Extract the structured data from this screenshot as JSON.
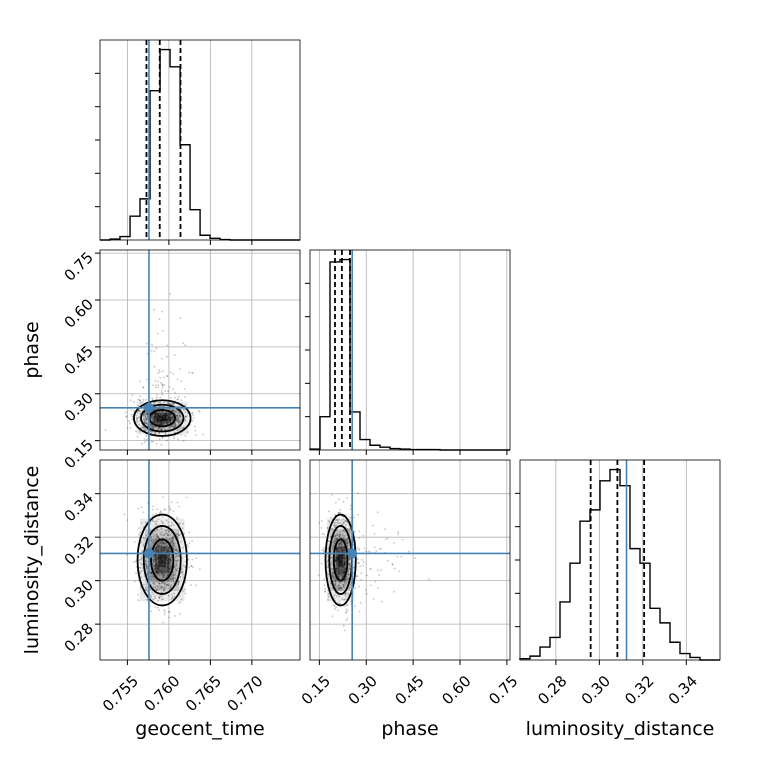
{
  "chart_data": {
    "type": "corner",
    "parameters": [
      "geocent_time",
      "phase",
      "luminosity_distance"
    ],
    "truth": {
      "geocent_time": 0.7576,
      "phase": 0.255,
      "luminosity_distance": 0.3125
    },
    "quantiles": {
      "geocent_time": [
        0.7573,
        0.7589,
        0.7614
      ],
      "phase": [
        0.2,
        0.222,
        0.248
      ],
      "luminosity_distance": [
        0.296,
        0.3083,
        0.3206
      ]
    },
    "ranges": {
      "geocent_time": [
        0.7517,
        0.7758
      ],
      "phase": [
        0.12,
        0.76
      ],
      "luminosity_distance": [
        0.2635,
        0.3555
      ]
    },
    "ticks": {
      "geocent_time": {
        "values": [
          0.755,
          0.76,
          0.765,
          0.77
        ],
        "labels": [
          "0.755",
          "0.760",
          "0.765",
          "0.770"
        ]
      },
      "phase": {
        "values": [
          0.15,
          0.3,
          0.45,
          0.6,
          0.75
        ],
        "labels": [
          "0.15",
          "0.30",
          "0.45",
          "0.60",
          "0.75"
        ]
      },
      "luminosity_distance": {
        "values": [
          0.28,
          0.3,
          0.32,
          0.34
        ],
        "labels": [
          "0.28",
          "0.30",
          "0.32",
          "0.34"
        ]
      }
    },
    "histograms": {
      "geocent_time": {
        "edges": [
          0.7517,
          0.75291,
          0.75411,
          0.75532,
          0.75652,
          0.75773,
          0.75894,
          0.76014,
          0.76135,
          0.76255,
          0.76376,
          0.76496,
          0.76617,
          0.76737,
          0.76858,
          0.76979,
          0.77099,
          0.7722,
          0.7734,
          0.77461,
          0.7758
        ],
        "counts": [
          0,
          2,
          8,
          55,
          95,
          345,
          440,
          400,
          220,
          70,
          11,
          4,
          1,
          0,
          0,
          0,
          0,
          0,
          0,
          0
        ]
      },
      "phase": {
        "edges": [
          0.12,
          0.152,
          0.184,
          0.216,
          0.248,
          0.28,
          0.312,
          0.344,
          0.376,
          0.408,
          0.44,
          0.472,
          0.504,
          0.536,
          0.568,
          0.6,
          0.632,
          0.664,
          0.696,
          0.728,
          0.76
        ],
        "counts": [
          2,
          70,
          395,
          400,
          80,
          22,
          10,
          6,
          3,
          2,
          1,
          1,
          1,
          0,
          0,
          0,
          0,
          0,
          0,
          0
        ]
      },
      "luminosity_distance": {
        "edges": [
          0.2635,
          0.2681,
          0.2727,
          0.2773,
          0.2819,
          0.2865,
          0.2911,
          0.2957,
          0.3003,
          0.3049,
          0.3095,
          0.3141,
          0.3187,
          0.3233,
          0.3279,
          0.3325,
          0.3371,
          0.3417,
          0.3463,
          0.3509,
          0.3555
        ],
        "counts": [
          4,
          12,
          40,
          70,
          180,
          300,
          430,
          465,
          555,
          590,
          540,
          345,
          300,
          160,
          115,
          55,
          20,
          8,
          0,
          0
        ]
      }
    },
    "contours": {
      "phase_vs_geocent_time": {
        "center": [
          0.7592,
          0.222
        ],
        "sigmas": [
          0.00155,
          0.026
        ],
        "levels": [
          1.0,
          1.65,
          2.2
        ]
      },
      "luminosity_distance_vs_geocent_time": {
        "center": [
          0.7592,
          0.3095
        ],
        "sigmas": [
          0.00135,
          0.0095
        ],
        "levels": [
          1.0,
          1.65,
          2.2
        ]
      },
      "luminosity_distance_vs_phase": {
        "center": [
          0.218,
          0.3095
        ],
        "sigmas": [
          0.022,
          0.0095
        ],
        "levels": [
          1.0,
          1.65,
          2.2
        ]
      }
    },
    "colors": {
      "truth": "#4682b4",
      "line": "#000000",
      "grid": "#b0b0b0"
    },
    "grid": true
  }
}
